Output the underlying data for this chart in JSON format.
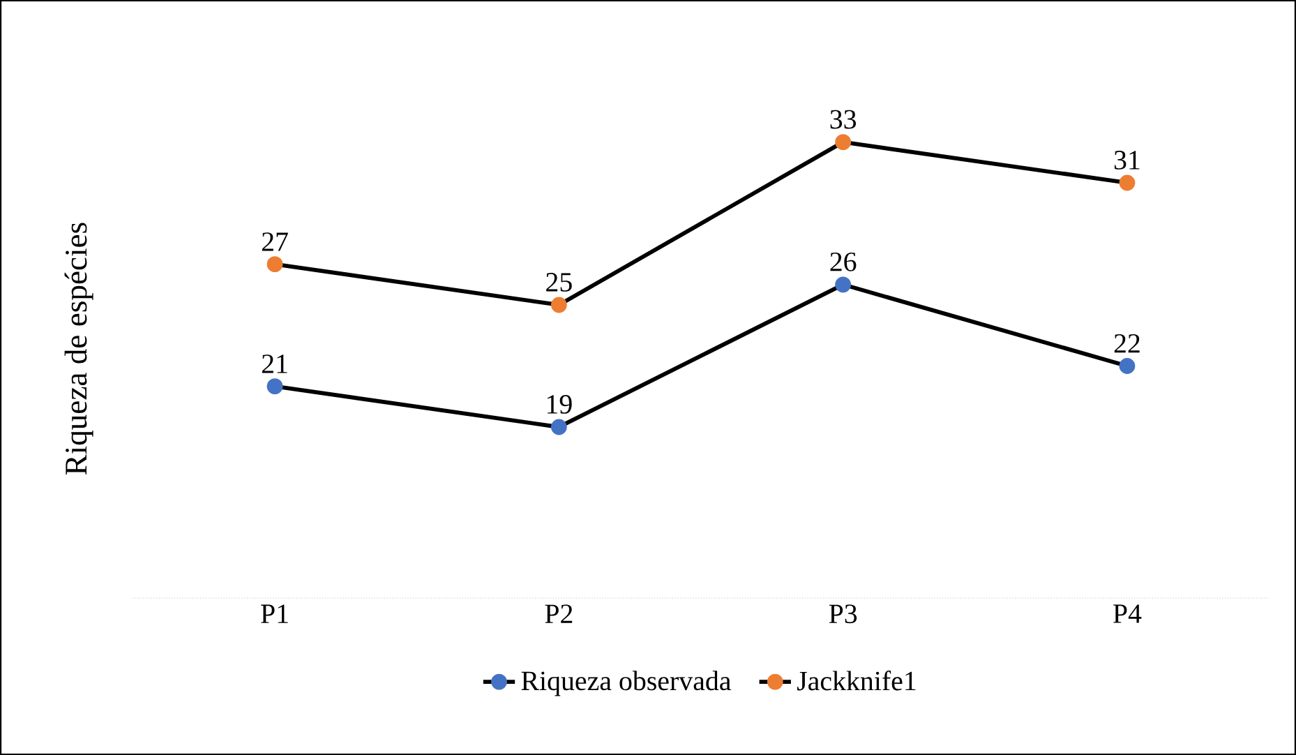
{
  "chart_data": {
    "type": "line",
    "ylabel": "Riqueza de espécies",
    "categories": [
      "P1",
      "P2",
      "P3",
      "P4"
    ],
    "series": [
      {
        "name": "Riqueza observada",
        "color": "#4472c4",
        "values": [
          21,
          19,
          26,
          22
        ]
      },
      {
        "name": "Jackknife1",
        "color": "#ed7d31",
        "values": [
          27,
          25,
          33,
          31
        ]
      }
    ],
    "data_labels": true,
    "marker": "circle",
    "line_style": "solid",
    "legend": "bottom"
  }
}
